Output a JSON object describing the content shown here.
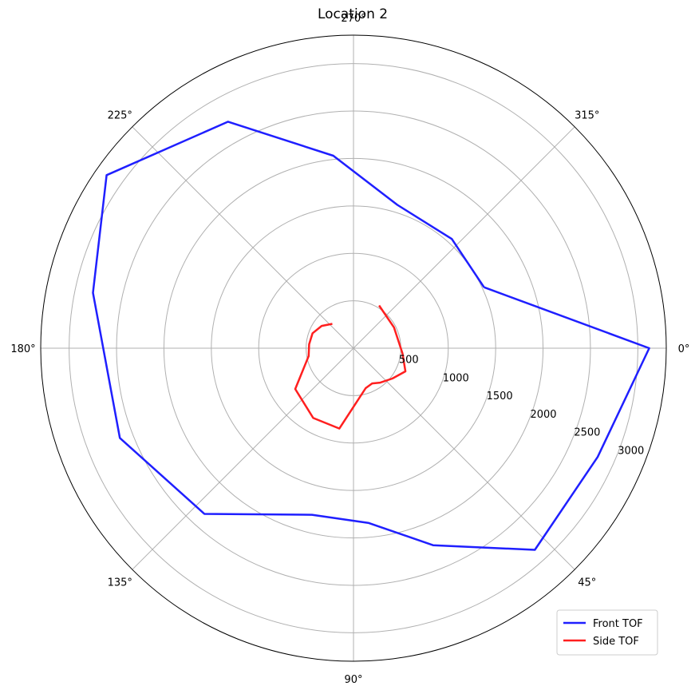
{
  "chart_data": {
    "type": "line",
    "projection": "polar",
    "title": "Location 2",
    "theta_direction": "clockwise",
    "theta_zero": "east",
    "theta_ticks": [
      "0°",
      "45°",
      "90°",
      "135°",
      "180°",
      "225°",
      "270°",
      "315°"
    ],
    "r_ticks": [
      "500",
      "1000",
      "1500",
      "2000",
      "2500",
      "3000"
    ],
    "r_tick_values": [
      500,
      1000,
      1500,
      2000,
      2500,
      3000
    ],
    "rlim": [
      0,
      3300
    ],
    "grid": true,
    "legend_position": "lower-right",
    "series": [
      {
        "name": "Front TOF",
        "color": "#1f1fff",
        "theta_deg": [
          335,
          360,
          24,
          48,
          68,
          85,
          104,
          132,
          159,
          192,
          215,
          241,
          264,
          287,
          312,
          335
        ],
        "r": [
          1520,
          3120,
          2820,
          2860,
          2240,
          1850,
          1810,
          2350,
          2640,
          2810,
          3180,
          2730,
          2040,
          1580,
          1550,
          1520
        ]
      },
      {
        "name": "Side TOF",
        "color": "#ff1f1f",
        "theta_deg": [
          301,
          333,
          6,
          24,
          38,
          52,
          62,
          73,
          100,
          120,
          145,
          170,
          185,
          200,
          215,
          229
        ],
        "r": [
          525,
          480,
          520,
          600,
          520,
          460,
          420,
          440,
          860,
          850,
          750,
          480,
          470,
          460,
          410,
          340
        ]
      }
    ]
  }
}
